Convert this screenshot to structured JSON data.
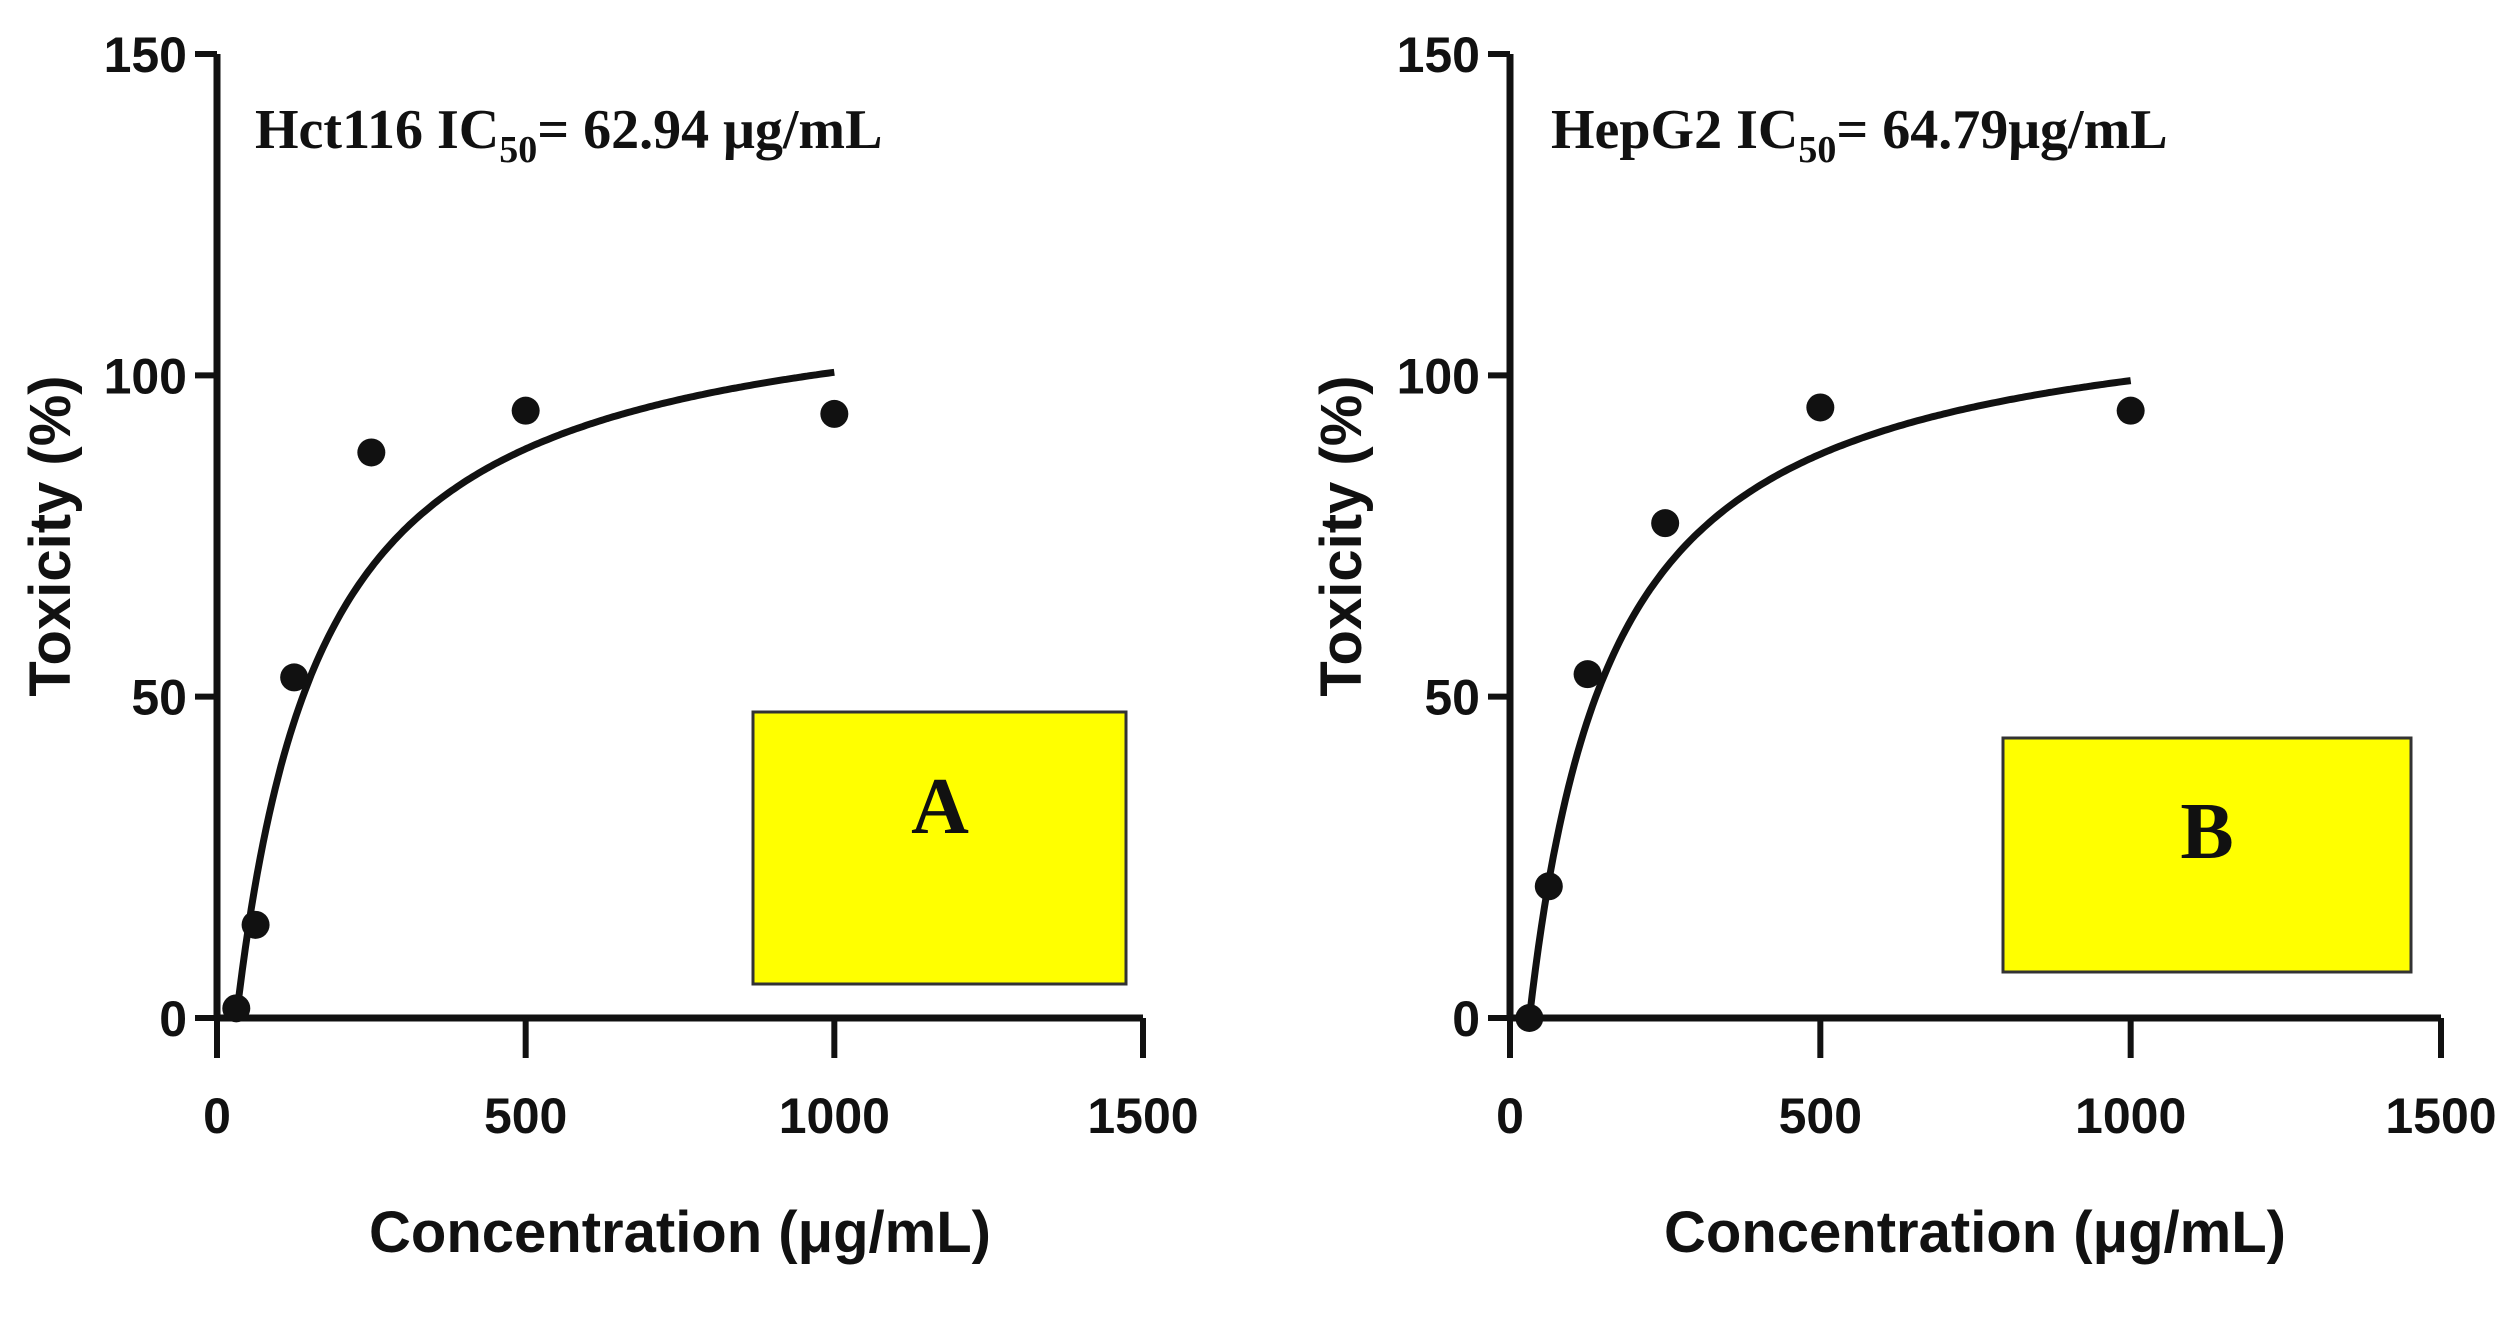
{
  "chart_data": [
    {
      "type": "scatter",
      "panel_label": "A",
      "annotation": {
        "prefix": "Hct116 IC",
        "subscript": "50",
        "suffix": "=  62.94 μg/mL"
      },
      "xlabel": "Concentration (μg/mL)",
      "ylabel": "Toxicity (%)",
      "xlim": [
        0,
        1500
      ],
      "ylim": [
        0,
        150
      ],
      "xticks": [
        0,
        500,
        1000,
        1500
      ],
      "yticks": [
        0,
        50,
        100,
        150
      ],
      "grid": false,
      "series": [
        {
          "x": [
            31.25,
            62.5,
            125,
            250,
            500,
            1000
          ],
          "y": [
            1.5,
            14.5,
            53,
            88,
            94.5,
            94
          ]
        }
      ],
      "fit": {
        "model": "hyperbolic",
        "top": 115,
        "ec": 140,
        "x0": 31.25,
        "xmax": 1000
      }
    },
    {
      "type": "scatter",
      "panel_label": "B",
      "annotation": {
        "prefix": "HepG2 IC",
        "subscript": "50",
        "suffix": "=   64.79μg/mL"
      },
      "xlabel": "Concentration (μg/mL)",
      "ylabel": "Toxicity (%)",
      "xlim": [
        0,
        1500
      ],
      "ylim": [
        0,
        150
      ],
      "xticks": [
        0,
        500,
        1000,
        1500
      ],
      "yticks": [
        0,
        50,
        100,
        150
      ],
      "grid": false,
      "series": [
        {
          "x": [
            31.25,
            62.5,
            125,
            250,
            500,
            1000
          ],
          "y": [
            0,
            20.5,
            53.5,
            77,
            95,
            94.5
          ]
        }
      ],
      "fit": {
        "model": "hyperbolic",
        "top": 113,
        "ec": 135,
        "x0": 31.25,
        "xmax": 1000
      }
    }
  ],
  "colors": {
    "axis": "#111111",
    "marker": "#111111",
    "box_fill": "#ffff00",
    "box_stroke": "#333333"
  }
}
